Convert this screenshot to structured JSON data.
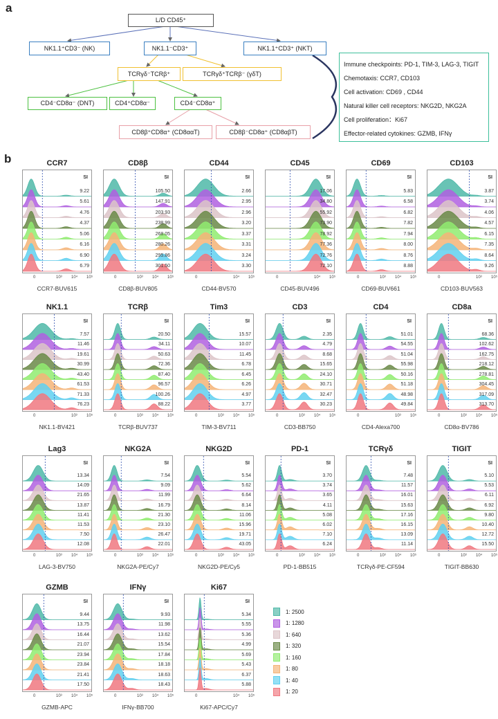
{
  "panel_a": {
    "label": "a",
    "boxes": {
      "root": "L/D CD45⁺",
      "nk": "NK1.1⁺CD3⁻ (NK)",
      "t": "NK1.1⁻CD3⁺",
      "nkt": "NK1.1⁺CD3⁺ (NKT)",
      "ab": "TCRγδ⁻TCRβ⁺",
      "gd": "TCRγδ⁺TCRβ⁻ (γδT)",
      "dnt": "CD4⁻CD8α⁻ (DNT)",
      "cd4": "CD4⁺CD8α⁻",
      "cd8": "CD4⁻CD8α⁺",
      "cd8aa": "CD8β⁺CD8α⁺ (CD8ααT)",
      "cd8ab": "CD8β⁻CD8α⁺ (CD8αβT)"
    },
    "markers": [
      "Immune checkpoints: PD-1, TIM-3, LAG-3, TIGIT",
      "Chemotaxis: CCR7, CD103",
      "Cell activation:  CD69 , CD44",
      "Natural killer cell receptors: NKG2D, NKG2A",
      "Cell proliferation：Ki67",
      "Effector-related cytokines: GZMB, IFNγ"
    ],
    "colors": {
      "root": "#555555",
      "nk_level": "#3a7fc0",
      "tcr_level": "#f0c030",
      "cd_level": "#4cc040",
      "cd8_level": "#e8a0a8",
      "markers_box": "#3cbf9a"
    }
  },
  "chart_data": {
    "type": "ridgeline-histogram",
    "label": "b",
    "si_header": "SI",
    "legend": [
      {
        "name": "1: 2500",
        "color": "#4fb8a8"
      },
      {
        "name": "1: 1280",
        "color": "#b060e0"
      },
      {
        "name": "1: 640",
        "color": "#dcc4c8"
      },
      {
        "name": "1: 320",
        "color": "#6a8a48"
      },
      {
        "name": "1: 160",
        "color": "#90ec70"
      },
      {
        "name": "1: 80",
        "color": "#f5b478"
      },
      {
        "name": "1: 40",
        "color": "#60d0f0"
      },
      {
        "name": "1: 20",
        "color": "#f07880"
      }
    ],
    "panels": [
      {
        "title": "CCR7",
        "xlabel": "CCR7-BUV615",
        "ticks": [
          "0",
          "10³",
          "10⁴",
          "10⁵"
        ],
        "si": [
          "9.22",
          "5.61",
          "4.76",
          "4.37",
          "5.06",
          "6.16",
          "6.90",
          "6.79"
        ]
      },
      {
        "title": "CD8β",
        "xlabel": "CD8β-BUV805",
        "ticks": [
          "0",
          "10³",
          "10⁴",
          "10⁵"
        ],
        "si": [
          "105.50",
          "147.91",
          "203.93",
          "238.99",
          "268.05",
          "280.26",
          "295.86",
          "301.50"
        ]
      },
      {
        "title": "CD44",
        "xlabel": "CD44-BV570",
        "ticks": [
          "0",
          "10⁴",
          "10⁵"
        ],
        "si": [
          "2.66",
          "2.95",
          "2.96",
          "3.20",
          "3.37",
          "3.31",
          "3.24",
          "3.30"
        ]
      },
      {
        "title": "CD45",
        "xlabel": "CD45-BUV496",
        "ticks": [
          "0",
          "10⁴",
          "10⁵"
        ],
        "si": [
          "17.06",
          "34.80",
          "55.92",
          "73.90",
          "78.92",
          "77.36",
          "72.76",
          "72.10"
        ]
      },
      {
        "title": "CD69",
        "xlabel": "CD69-BUV661",
        "ticks": [
          "0",
          "10³",
          "10⁴",
          "10⁵"
        ],
        "si": [
          "5.83",
          "6.58",
          "6.82",
          "7.82",
          "7.94",
          "8.00",
          "8.76",
          "8.88"
        ]
      },
      {
        "title": "CD103",
        "xlabel": "CD103-BUV563",
        "ticks": [
          "0",
          "10³",
          "10⁵"
        ],
        "si": [
          "3.87",
          "3.74",
          "4.06",
          "4.57",
          "6.15",
          "7.35",
          "8.64",
          "9.26"
        ]
      },
      {
        "title": "NK1.1",
        "xlabel": "NK1.1-BV421",
        "ticks": [
          "0",
          "10³",
          "10⁵"
        ],
        "si": [
          "7.57",
          "11.46",
          "19.61",
          "30.99",
          "43.40",
          "61.53",
          "71.33",
          "76.23"
        ]
      },
      {
        "title": "TCRβ",
        "xlabel": "TCRβ-BUV737",
        "ticks": [
          "0",
          "10³",
          "10⁴",
          "10⁵"
        ],
        "si": [
          "20.50",
          "34.11",
          "50.63",
          "72.36",
          "87.40",
          "96.57",
          "100.26",
          "88.22"
        ]
      },
      {
        "title": "Tim3",
        "xlabel": "TIM-3-BV711",
        "ticks": [
          "0",
          "10³",
          "10⁴",
          "10⁵"
        ],
        "si": [
          "15.57",
          "10.07",
          "11.45",
          "6.78",
          "6.45",
          "6.26",
          "4.97",
          "3.77"
        ]
      },
      {
        "title": "CD3",
        "xlabel": "CD3-BB750",
        "ticks": [
          "0",
          "10³",
          "10⁴",
          "10⁵"
        ],
        "si": [
          "2.35",
          "4.79",
          "8.68",
          "15.65",
          "24.10",
          "30.71",
          "32.47",
          "30.23"
        ]
      },
      {
        "title": "CD4",
        "xlabel": "CD4-Alexa700",
        "ticks": [
          "0",
          "10³",
          "10⁵"
        ],
        "si": [
          "51.01",
          "54.55",
          "51.04",
          "55.98",
          "50.16",
          "51.18",
          "48.98",
          "49.84"
        ]
      },
      {
        "title": "CD8a",
        "xlabel": "CD8α-BV786",
        "ticks": [
          "0",
          "10³",
          "10⁴",
          "10⁵"
        ],
        "si": [
          "68.36",
          "102.62",
          "162.75",
          "218.12",
          "278.81",
          "304.45",
          "317.09",
          "313.70"
        ]
      },
      {
        "title": "Lag3",
        "xlabel": "LAG-3-BV750",
        "ticks": [
          "0",
          "10³",
          "10⁴",
          "10⁵"
        ],
        "si": [
          "13.34",
          "14.09",
          "21.65",
          "13.87",
          "11.41",
          "11.53",
          "7.50",
          "12.08"
        ]
      },
      {
        "title": "NKG2A",
        "xlabel": "NKG2A-PE/Cy7",
        "ticks": [
          "0",
          "10³",
          "10⁴",
          "10⁵"
        ],
        "si": [
          "7.54",
          "9.09",
          "11.99",
          "16.79",
          "21.30",
          "23.10",
          "26.47",
          "22.01"
        ]
      },
      {
        "title": "NKG2D",
        "xlabel": "NKG2D-PE/Cy5",
        "ticks": [
          "0",
          "10³",
          "10⁴",
          "10⁵"
        ],
        "si": [
          "5.54",
          "5.62",
          "6.64",
          "8.14",
          "11.06",
          "15.96",
          "19.71",
          "43.05"
        ]
      },
      {
        "title": "PD-1",
        "xlabel": "PD-1-BB515",
        "ticks": [
          "0",
          "10³",
          "10⁴",
          "10⁵"
        ],
        "si": [
          "3.70",
          "3.74",
          "3.65",
          "4.11",
          "5.08",
          "6.02",
          "7.10",
          "6.24"
        ]
      },
      {
        "title": "TCRγδ",
        "xlabel": "TCRγδ-PE-CF594",
        "ticks": [
          "0",
          "10³",
          "10⁴",
          "10⁵"
        ],
        "si": [
          "7.48",
          "11.57",
          "16.01",
          "15.63",
          "17.16",
          "16.15",
          "13.09",
          "11.14"
        ]
      },
      {
        "title": "TIGIT",
        "xlabel": "TIGIT-BB630",
        "ticks": [
          "0",
          "10³",
          "10⁴",
          "10⁵"
        ],
        "si": [
          "5.10",
          "5.53",
          "6.11",
          "6.92",
          "9.80",
          "10.40",
          "12.72",
          "15.50"
        ]
      },
      {
        "title": "GZMB",
        "xlabel": "GZMB-APC",
        "ticks": [
          "0",
          "10³",
          "10⁴",
          "10⁵"
        ],
        "si": [
          "9.44",
          "13.75",
          "16.44",
          "21.07",
          "23.94",
          "23.84",
          "21.41",
          "17.50"
        ]
      },
      {
        "title": "IFNγ",
        "xlabel": "IFNγ-BB700",
        "ticks": [
          "0",
          "10³",
          "10⁴",
          "10⁵"
        ],
        "si": [
          "9.93",
          "11.98",
          "13.62",
          "15.54",
          "17.84",
          "18.18",
          "18.63",
          "18.43"
        ]
      },
      {
        "title": "Ki67",
        "xlabel": "Ki67-APC/Cy7",
        "ticks": [
          "0",
          "10⁴",
          "10⁵"
        ],
        "si": [
          "5.34",
          "5.55",
          "5.36",
          "4.99",
          "5.69",
          "5.43",
          "6.37",
          "5.88"
        ]
      }
    ]
  }
}
